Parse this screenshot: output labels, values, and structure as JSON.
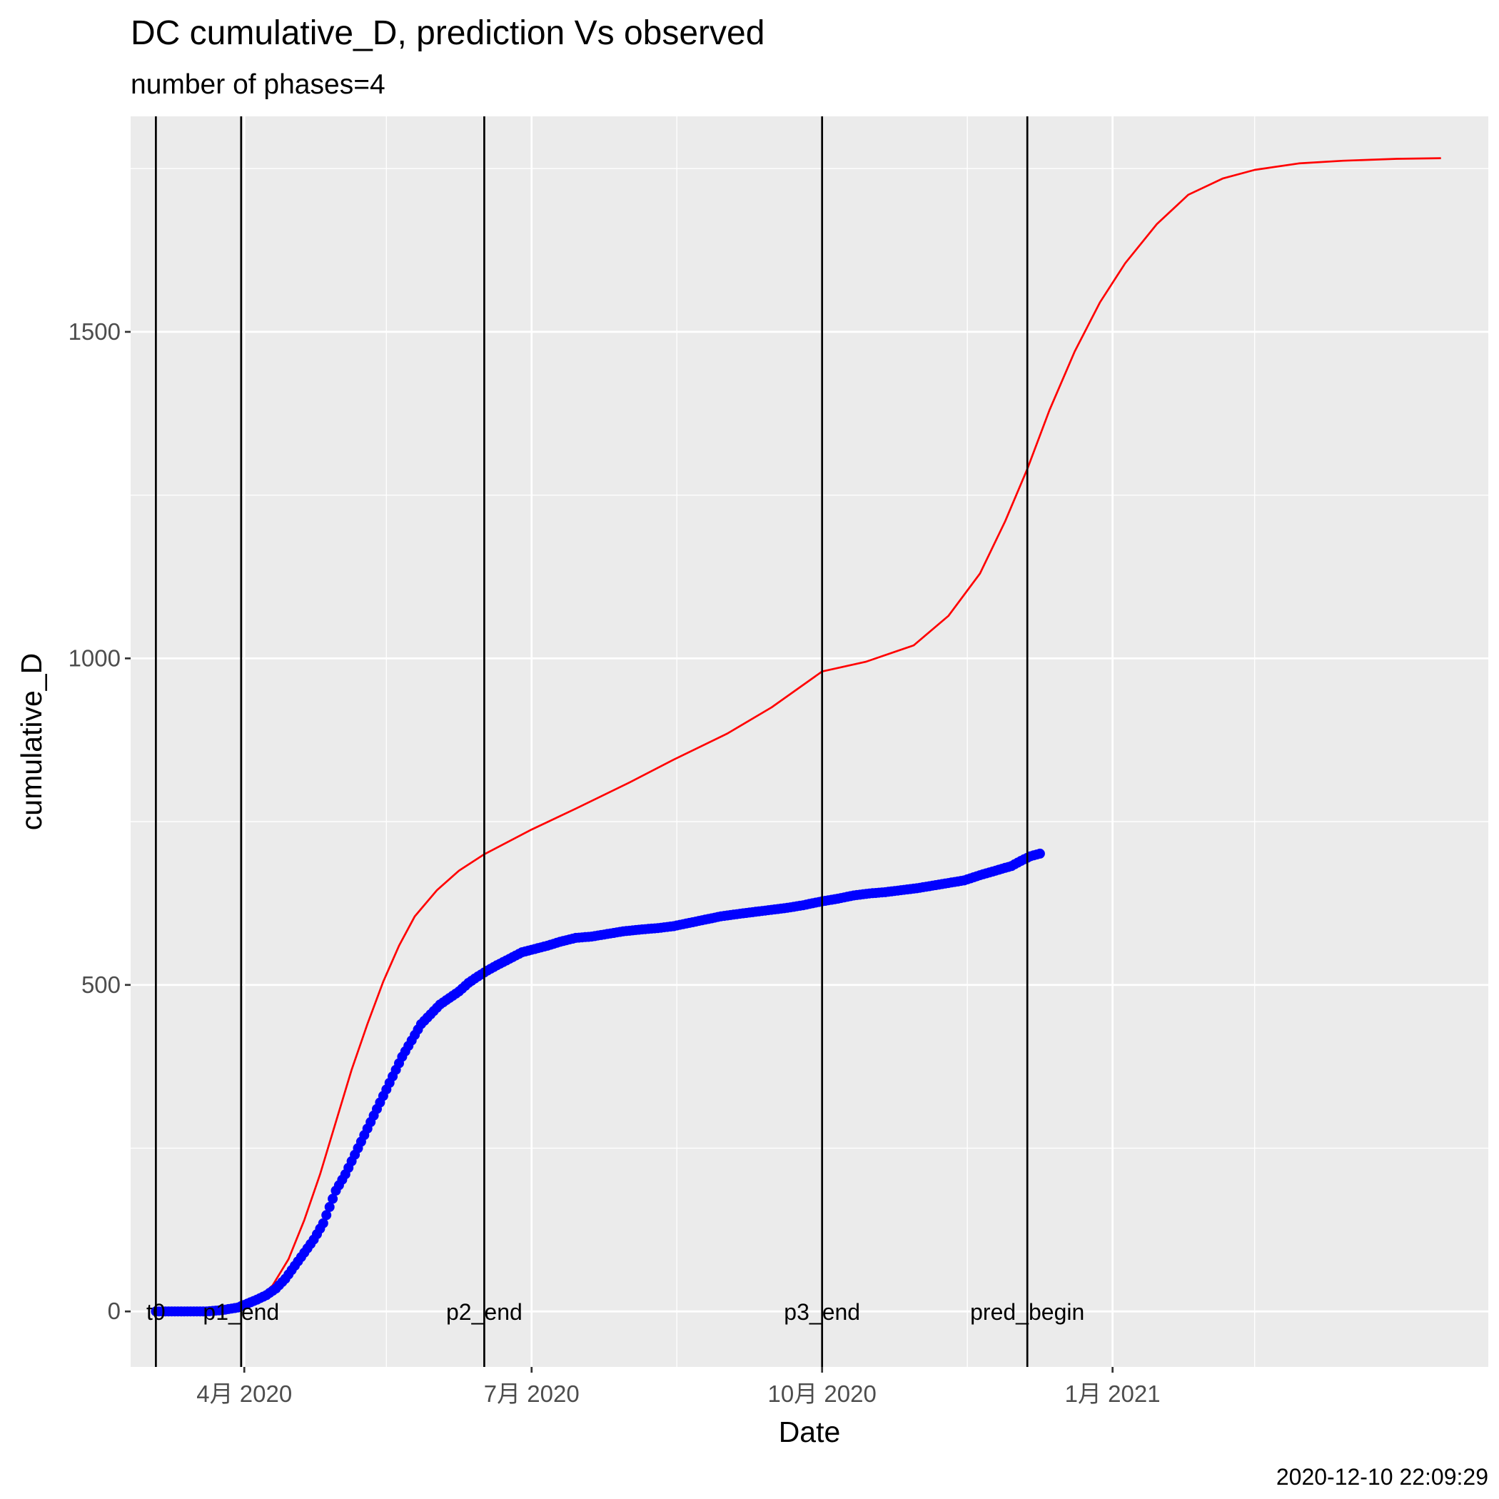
{
  "chart_data": {
    "type": "line",
    "title": "DC cumulative_D,  prediction Vs observed",
    "subtitle": "number of phases=4",
    "xlabel": "Date",
    "ylabel": "cumulative_D",
    "caption": "2020-12-10 22:09:29",
    "xlim": [
      "2020-02-25",
      "2021-04-30"
    ],
    "ylim": [
      -85,
      1830
    ],
    "x_ticks": [
      {
        "date": "2020-04-01",
        "label": "4月 2020"
      },
      {
        "date": "2020-07-01",
        "label": "7月 2020"
      },
      {
        "date": "2020-10-01",
        "label": "10月 2020"
      },
      {
        "date": "2021-01-01",
        "label": "1月 2021"
      }
    ],
    "x_minor_ticks": [
      "2020-05-16",
      "2020-08-16",
      "2020-11-16",
      "2021-02-15"
    ],
    "y_ticks": [
      0,
      500,
      1000,
      1500
    ],
    "y_minor_ticks": [
      250,
      750,
      1250,
      1750
    ],
    "grid": true,
    "vertical_lines": [
      {
        "date": "2020-03-04",
        "label": "t0"
      },
      {
        "date": "2020-03-31",
        "label": "p1_end"
      },
      {
        "date": "2020-06-16",
        "label": "p2_end"
      },
      {
        "date": "2020-10-01",
        "label": "p3_end"
      },
      {
        "date": "2020-12-05",
        "label": "pred_begin"
      }
    ],
    "series": [
      {
        "color": "#ff0000",
        "kind": "line",
        "points": [
          [
            "2020-03-04",
            0
          ],
          [
            "2020-03-15",
            0
          ],
          [
            "2020-03-25",
            2
          ],
          [
            "2020-04-01",
            8
          ],
          [
            "2020-04-05",
            18
          ],
          [
            "2020-04-10",
            40
          ],
          [
            "2020-04-15",
            80
          ],
          [
            "2020-04-20",
            140
          ],
          [
            "2020-04-25",
            210
          ],
          [
            "2020-04-30",
            290
          ],
          [
            "2020-05-05",
            370
          ],
          [
            "2020-05-10",
            440
          ],
          [
            "2020-05-15",
            505
          ],
          [
            "2020-05-20",
            560
          ],
          [
            "2020-05-25",
            605
          ],
          [
            "2020-06-01",
            645
          ],
          [
            "2020-06-08",
            675
          ],
          [
            "2020-06-16",
            700
          ],
          [
            "2020-07-01",
            738
          ],
          [
            "2020-07-15",
            770
          ],
          [
            "2020-08-01",
            810
          ],
          [
            "2020-08-15",
            845
          ],
          [
            "2020-09-01",
            885
          ],
          [
            "2020-09-15",
            925
          ],
          [
            "2020-10-01",
            980
          ],
          [
            "2020-10-15",
            995
          ],
          [
            "2020-10-30",
            1020
          ],
          [
            "2020-11-10",
            1065
          ],
          [
            "2020-11-20",
            1130
          ],
          [
            "2020-11-28",
            1210
          ],
          [
            "2020-12-05",
            1290
          ],
          [
            "2020-12-12",
            1380
          ],
          [
            "2020-12-20",
            1470
          ],
          [
            "2020-12-28",
            1545
          ],
          [
            "2021-01-05",
            1605
          ],
          [
            "2021-01-15",
            1665
          ],
          [
            "2021-01-25",
            1710
          ],
          [
            "2021-02-05",
            1735
          ],
          [
            "2021-02-15",
            1748
          ],
          [
            "2021-03-01",
            1758
          ],
          [
            "2021-03-15",
            1762
          ],
          [
            "2021-04-01",
            1765
          ],
          [
            "2021-04-15",
            1766
          ]
        ]
      },
      {
        "color": "#0000ff",
        "kind": "points",
        "points": [
          [
            "2020-03-04",
            0
          ],
          [
            "2020-03-10",
            0
          ],
          [
            "2020-03-15",
            0
          ],
          [
            "2020-03-20",
            0
          ],
          [
            "2020-03-25",
            2
          ],
          [
            "2020-03-30",
            6
          ],
          [
            "2020-04-02",
            12
          ],
          [
            "2020-04-05",
            18
          ],
          [
            "2020-04-08",
            25
          ],
          [
            "2020-04-11",
            35
          ],
          [
            "2020-04-14",
            50
          ],
          [
            "2020-04-17",
            70
          ],
          [
            "2020-04-20",
            90
          ],
          [
            "2020-04-23",
            110
          ],
          [
            "2020-04-26",
            135
          ],
          [
            "2020-04-28",
            160
          ],
          [
            "2020-04-30",
            185
          ],
          [
            "2020-05-03",
            210
          ],
          [
            "2020-05-06",
            240
          ],
          [
            "2020-05-09",
            270
          ],
          [
            "2020-05-12",
            300
          ],
          [
            "2020-05-15",
            330
          ],
          [
            "2020-05-18",
            360
          ],
          [
            "2020-05-21",
            390
          ],
          [
            "2020-05-24",
            415
          ],
          [
            "2020-05-27",
            440
          ],
          [
            "2020-05-30",
            455
          ],
          [
            "2020-06-02",
            470
          ],
          [
            "2020-06-05",
            480
          ],
          [
            "2020-06-08",
            490
          ],
          [
            "2020-06-11",
            503
          ],
          [
            "2020-06-14",
            513
          ],
          [
            "2020-06-17",
            522
          ],
          [
            "2020-06-20",
            530
          ],
          [
            "2020-06-24",
            540
          ],
          [
            "2020-06-28",
            550
          ],
          [
            "2020-07-02",
            555
          ],
          [
            "2020-07-06",
            560
          ],
          [
            "2020-07-10",
            566
          ],
          [
            "2020-07-15",
            572
          ],
          [
            "2020-07-20",
            574
          ],
          [
            "2020-07-25",
            578
          ],
          [
            "2020-07-30",
            582
          ],
          [
            "2020-08-05",
            585
          ],
          [
            "2020-08-10",
            587
          ],
          [
            "2020-08-15",
            590
          ],
          [
            "2020-08-20",
            595
          ],
          [
            "2020-08-25",
            600
          ],
          [
            "2020-08-30",
            605
          ],
          [
            "2020-09-05",
            609
          ],
          [
            "2020-09-10",
            612
          ],
          [
            "2020-09-15",
            615
          ],
          [
            "2020-09-20",
            618
          ],
          [
            "2020-09-25",
            622
          ],
          [
            "2020-10-01",
            628
          ],
          [
            "2020-10-06",
            632
          ],
          [
            "2020-10-11",
            637
          ],
          [
            "2020-10-16",
            640
          ],
          [
            "2020-10-21",
            642
          ],
          [
            "2020-10-26",
            645
          ],
          [
            "2020-10-31",
            648
          ],
          [
            "2020-11-05",
            652
          ],
          [
            "2020-11-10",
            656
          ],
          [
            "2020-11-15",
            660
          ],
          [
            "2020-11-20",
            668
          ],
          [
            "2020-11-25",
            675
          ],
          [
            "2020-11-30",
            682
          ],
          [
            "2020-12-03",
            690
          ],
          [
            "2020-12-06",
            697
          ],
          [
            "2020-12-09",
            701
          ]
        ]
      }
    ]
  }
}
